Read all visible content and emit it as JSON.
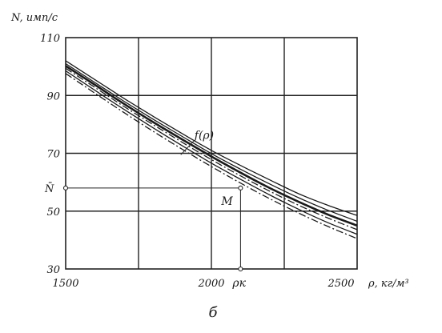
{
  "chart_data": {
    "type": "line",
    "title": "",
    "ylabel": "N, имп/с",
    "xlabel": "ρ, кг/м³",
    "xlim": [
      1500,
      2500
    ],
    "ylim": [
      30,
      110
    ],
    "grid": true,
    "x_ticks": [
      {
        "value": 1500,
        "label": "1500"
      },
      {
        "value": 2000,
        "label": "2000"
      },
      {
        "value": 2500,
        "label": "2500"
      }
    ],
    "y_ticks": [
      {
        "value": 110,
        "label": "110"
      },
      {
        "value": 90,
        "label": "90"
      },
      {
        "value": 70,
        "label": "70"
      },
      {
        "value": 50,
        "label": "50"
      },
      {
        "value": 30,
        "label": "30"
      }
    ],
    "x": [
      1500,
      1600,
      1700,
      1800,
      1900,
      2000,
      2100,
      2200,
      2300,
      2400,
      2500
    ],
    "series": [
      {
        "values": [
          102.0,
          95.5,
          89.0,
          82.8,
          76.8,
          71.0,
          65.8,
          60.8,
          56.0,
          52.0,
          48.5
        ],
        "style": "solid"
      },
      {
        "values": [
          101.0,
          94.5,
          88.0,
          81.8,
          75.8,
          69.9,
          64.5,
          59.4,
          54.6,
          50.3,
          46.5
        ],
        "style": "solid"
      },
      {
        "values": [
          100.2,
          93.7,
          87.1,
          80.8,
          74.8,
          68.9,
          63.3,
          58.0,
          53.2,
          48.8,
          45.0
        ],
        "style": "solid-bold"
      },
      {
        "values": [
          99.4,
          92.8,
          86.2,
          79.9,
          73.8,
          67.8,
          62.2,
          56.9,
          52.0,
          47.6,
          43.6
        ],
        "style": "dashdot"
      },
      {
        "values": [
          98.5,
          91.8,
          85.2,
          78.8,
          72.6,
          66.6,
          61.0,
          55.6,
          50.6,
          46.0,
          42.0
        ],
        "style": "solid"
      },
      {
        "values": [
          97.6,
          90.8,
          84.1,
          77.6,
          71.4,
          65.4,
          59.7,
          54.3,
          49.3,
          44.7,
          40.5
        ],
        "style": "dashdot"
      }
    ],
    "annotations": {
      "curve_label": "f(ρ)",
      "point_label": "M",
      "point": {
        "x": 2100,
        "y": 58
      },
      "y_marker_label": "N̄",
      "x_marker_label": "ρк",
      "figure_letter": "б"
    }
  }
}
